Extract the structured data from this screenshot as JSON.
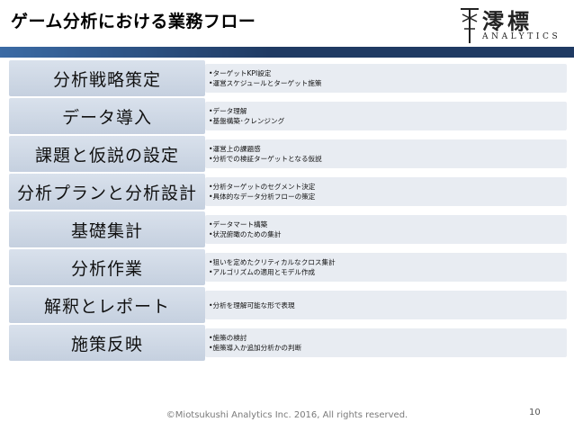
{
  "title": "ゲーム分析における業務フロー",
  "logo": {
    "kanji": "澪標",
    "text": "ANALYTICS"
  },
  "steps": [
    {
      "label": "分析戦略策定",
      "details": [
        "•ターゲットKPI設定",
        "•運営スケジュールとターゲット施策"
      ]
    },
    {
      "label": "データ導入",
      "details": [
        "•データ理解",
        "•基盤構築･クレンジング"
      ]
    },
    {
      "label": "課題と仮説の設定",
      "details": [
        "•運営上の課題感",
        "•分析での検証ターゲットとなる仮説"
      ]
    },
    {
      "label": "分析プランと分析設計",
      "details": [
        "•分析ターゲットのセグメント決定",
        "•具体的なデータ分析フローの策定"
      ]
    },
    {
      "label": "基礎集計",
      "details": [
        "•データマート構築",
        "•状況俯瞰のための集計"
      ]
    },
    {
      "label": "分析作業",
      "details": [
        "•狙いを定めたクリティカルなクロス集計",
        "•アルゴリズムの適用とモデル作成"
      ]
    },
    {
      "label": "解釈とレポート",
      "details": [
        "•分析を理解可能な形で表現"
      ]
    },
    {
      "label": "施策反映",
      "details": [
        "•施策の検討",
        "•施策導入か追加分析かの判断"
      ]
    }
  ],
  "footer": "©Miotsukushi Analytics Inc. 2016, All rights reserved.",
  "page_number": "10",
  "colors": {
    "header_bar": "#1f3a63",
    "step_fill": "#c5d0df",
    "detail_fill": "#e8ecf2"
  }
}
